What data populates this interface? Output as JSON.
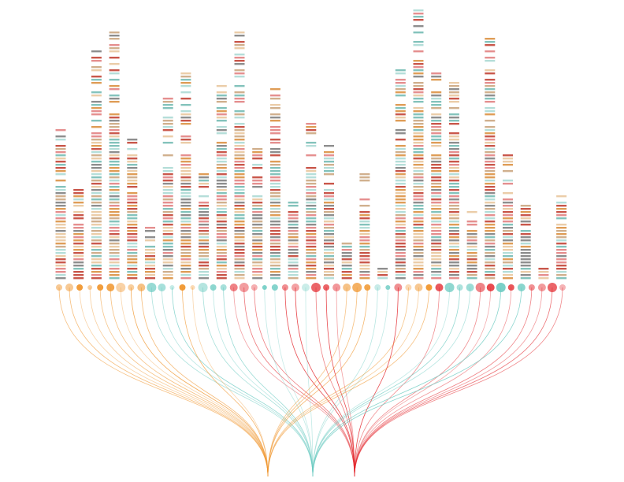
{
  "chart_data": {
    "type": "strip-network",
    "columns": [
      48,
      29,
      74,
      79,
      45,
      17,
      58,
      66,
      34,
      62,
      79,
      42,
      61,
      26,
      50,
      43,
      13,
      34,
      6,
      67,
      87,
      66,
      63,
      22,
      77,
      40,
      24,
      6,
      27
    ],
    "palette": [
      "#c0392b",
      "#e07b7b",
      "#d98c3a",
      "#e8c49a",
      "#6fb8b0",
      "#a8d8d2",
      "#7a7a7a",
      "#c9a27a"
    ],
    "groups": [
      {
        "color": "#f0962e"
      },
      {
        "color": "#6ccbc2"
      },
      {
        "color": "#e3262c"
      }
    ],
    "node_groups": [
      0,
      0,
      0,
      0,
      0,
      0,
      0,
      0,
      0,
      1,
      1,
      1,
      0,
      0,
      1,
      1,
      1,
      2,
      2,
      2,
      1,
      1,
      2,
      2,
      1,
      2,
      2,
      2,
      0,
      0,
      0,
      1,
      1,
      2,
      0,
      0,
      0,
      2,
      1,
      1,
      1,
      2,
      2,
      1,
      2,
      1,
      2,
      2,
      2,
      2
    ],
    "node_sizes": [
      4,
      5,
      4,
      3,
      4,
      5,
      6,
      4,
      5,
      6,
      5,
      3,
      4,
      3,
      6,
      4,
      4,
      5,
      6,
      4,
      3,
      4,
      4,
      5,
      5,
      6,
      4,
      5,
      5,
      6,
      4,
      4,
      3,
      5,
      4,
      5,
      4,
      5,
      6,
      4,
      5,
      6,
      5,
      6,
      4,
      5,
      4,
      5,
      6,
      4
    ]
  }
}
